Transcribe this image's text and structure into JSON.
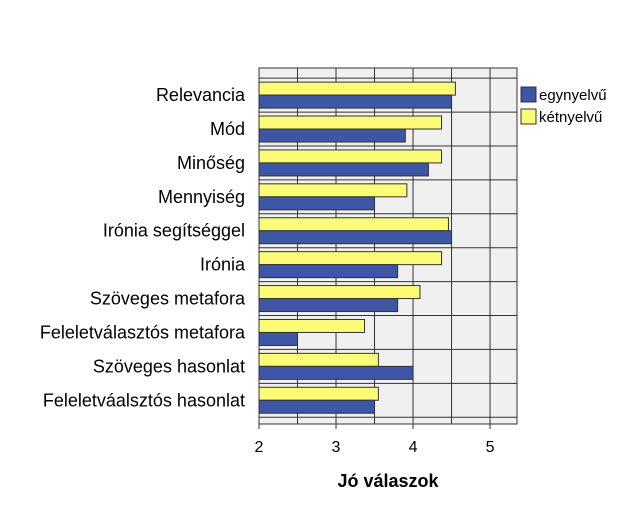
{
  "chart_data": {
    "type": "bar",
    "orientation": "horizontal",
    "categories": [
      "Relevancia",
      "Mód",
      "Minőség",
      "Mennyiség",
      "Irónia segítséggel",
      "Irónia",
      "Szöveges metafora",
      "Feleletválasztós metafora",
      "Szöveges hasonlat",
      "Feleletváalsztós hasonlat"
    ],
    "series": [
      {
        "name": "egynyelvű",
        "color": "#3d56a6",
        "values": [
          4.5,
          3.9,
          4.2,
          3.5,
          4.5,
          3.8,
          3.8,
          2.5,
          4.0,
          3.5
        ]
      },
      {
        "name": "kétnyelvű",
        "color": "#fbfb77",
        "values": [
          4.55,
          4.37,
          4.37,
          3.92,
          4.46,
          4.37,
          4.09,
          3.37,
          3.55,
          3.55
        ]
      }
    ],
    "xlabel": "Jó válaszok",
    "ylabel": "",
    "xlim": [
      2,
      5.35
    ],
    "xticks": [
      2,
      3,
      4,
      5
    ],
    "grid": true,
    "plot_background": "#f0f0f0",
    "legend_position": "top-right"
  }
}
